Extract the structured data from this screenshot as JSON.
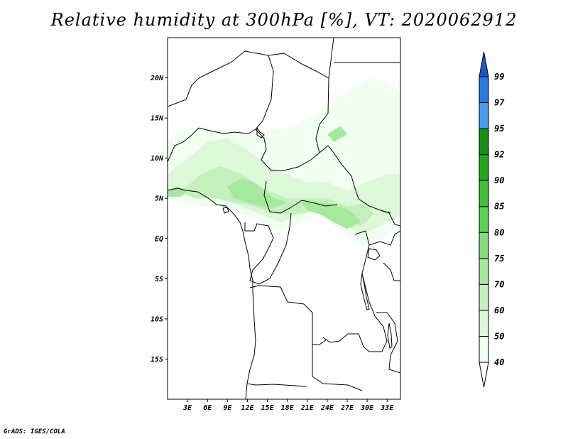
{
  "title": "Relative humidity at 300hPa [%], VT: 2020062912",
  "credit": "GrADS: IGES/COLA",
  "map": {
    "lon_range": [
      0,
      35
    ],
    "lat_range": [
      -20,
      25
    ],
    "lat_ticks": [
      {
        "value": 20,
        "label": "20N"
      },
      {
        "value": 15,
        "label": "15N"
      },
      {
        "value": 10,
        "label": "10N"
      },
      {
        "value": 5,
        "label": "5N"
      },
      {
        "value": 0,
        "label": "EQ"
      },
      {
        "value": -5,
        "label": "5S"
      },
      {
        "value": -10,
        "label": "10S"
      },
      {
        "value": -15,
        "label": "15S"
      }
    ],
    "lon_ticks": [
      {
        "value": 3,
        "label": "3E"
      },
      {
        "value": 6,
        "label": "6E"
      },
      {
        "value": 9,
        "label": "9E"
      },
      {
        "value": 12,
        "label": "12E"
      },
      {
        "value": 15,
        "label": "15E"
      },
      {
        "value": 18,
        "label": "18E"
      },
      {
        "value": 21,
        "label": "21E"
      },
      {
        "value": 24,
        "label": "24E"
      },
      {
        "value": 27,
        "label": "27E"
      },
      {
        "value": 30,
        "label": "30E"
      },
      {
        "value": 33,
        "label": "33E"
      }
    ]
  },
  "humidity_regions": [
    {
      "level": 40,
      "points": [
        [
          0,
          12
        ],
        [
          2,
          13.5
        ],
        [
          5,
          14
        ],
        [
          8,
          13.5
        ],
        [
          12,
          13
        ],
        [
          16,
          13.5
        ],
        [
          19,
          14
        ],
        [
          22,
          15.5
        ],
        [
          25,
          17
        ],
        [
          28,
          19
        ],
        [
          31,
          20
        ],
        [
          34,
          19
        ],
        [
          35,
          18
        ],
        [
          35,
          2
        ],
        [
          32,
          0
        ],
        [
          29,
          -1
        ],
        [
          26,
          1
        ],
        [
          23,
          3
        ],
        [
          20,
          2
        ],
        [
          17,
          1
        ],
        [
          14,
          2
        ],
        [
          11,
          3
        ],
        [
          8,
          4
        ],
        [
          5,
          4
        ],
        [
          2,
          4.5
        ],
        [
          0,
          5
        ]
      ]
    },
    {
      "level": 50,
      "points": [
        [
          0,
          8
        ],
        [
          3,
          10
        ],
        [
          6,
          12
        ],
        [
          9,
          12.5
        ],
        [
          12,
          11
        ],
        [
          15,
          9
        ],
        [
          18,
          8
        ],
        [
          21,
          7
        ],
        [
          24,
          7
        ],
        [
          27,
          6
        ],
        [
          30,
          7
        ],
        [
          33,
          8
        ],
        [
          35,
          8
        ],
        [
          35,
          3
        ],
        [
          32,
          1.5
        ],
        [
          29,
          0.5
        ],
        [
          26,
          2
        ],
        [
          23,
          3.5
        ],
        [
          20,
          3
        ],
        [
          17,
          2
        ],
        [
          14,
          3
        ],
        [
          11,
          4
        ],
        [
          8,
          5
        ],
        [
          5,
          5.5
        ],
        [
          2,
          6
        ],
        [
          0,
          6
        ]
      ]
    },
    {
      "level": 60,
      "points": [
        [
          2,
          5.8
        ],
        [
          5,
          8
        ],
        [
          8,
          9
        ],
        [
          11,
          8
        ],
        [
          13,
          7
        ],
        [
          15,
          6
        ],
        [
          18,
          5
        ],
        [
          21,
          5
        ],
        [
          24,
          5
        ],
        [
          27,
          4
        ],
        [
          30,
          4.5
        ],
        [
          31,
          3
        ],
        [
          29,
          1.5
        ],
        [
          27,
          2
        ],
        [
          25,
          3
        ],
        [
          22,
          3.5
        ],
        [
          19,
          3
        ],
        [
          16,
          3
        ],
        [
          13,
          4
        ],
        [
          10,
          4.5
        ],
        [
          7,
          5
        ],
        [
          4,
          5
        ]
      ]
    },
    {
      "level": 70,
      "points": [
        [
          9,
          6.5
        ],
        [
          11,
          7.5
        ],
        [
          13,
          7
        ],
        [
          14.5,
          6
        ],
        [
          16,
          5
        ],
        [
          18,
          4.5
        ],
        [
          16,
          3.8
        ],
        [
          14,
          4
        ],
        [
          12,
          4.5
        ],
        [
          10,
          5
        ]
      ]
    },
    {
      "level": 70,
      "points": [
        [
          20,
          4.5
        ],
        [
          23,
          4.5
        ],
        [
          26,
          4
        ],
        [
          28,
          3.2
        ],
        [
          29,
          2
        ],
        [
          27,
          1.2
        ],
        [
          25,
          2
        ],
        [
          23,
          3
        ],
        [
          21,
          3.5
        ]
      ]
    },
    {
      "level": 70,
      "points": [
        [
          0,
          6
        ],
        [
          1.5,
          6.5
        ],
        [
          3,
          6
        ],
        [
          2,
          5.2
        ],
        [
          0,
          5.2
        ]
      ]
    },
    {
      "level": 70,
      "points": [
        [
          24,
          13
        ],
        [
          26,
          14
        ],
        [
          27,
          13
        ],
        [
          25,
          12
        ]
      ]
    }
  ],
  "colorbar": {
    "arrow_bottom_label": "",
    "levels": [
      {
        "label": "40",
        "color": "#f0fff0"
      },
      {
        "label": "50",
        "color": "#dcf8d8"
      },
      {
        "label": "60",
        "color": "#c4f0be"
      },
      {
        "label": "70",
        "color": "#a6e89e"
      },
      {
        "label": "75",
        "color": "#86dc7c"
      },
      {
        "label": "80",
        "color": "#5ed052"
      },
      {
        "label": "85",
        "color": "#3ec034"
      },
      {
        "label": "90",
        "color": "#22a820"
      },
      {
        "label": "92",
        "color": "#138f12"
      },
      {
        "label": "95",
        "color": "#4a9cf0"
      },
      {
        "label": "97",
        "color": "#2a78e0"
      },
      {
        "label": "99",
        "color": "#1858c8"
      }
    ]
  },
  "colors": {
    "border": "#000000",
    "background": "#ffffff"
  }
}
